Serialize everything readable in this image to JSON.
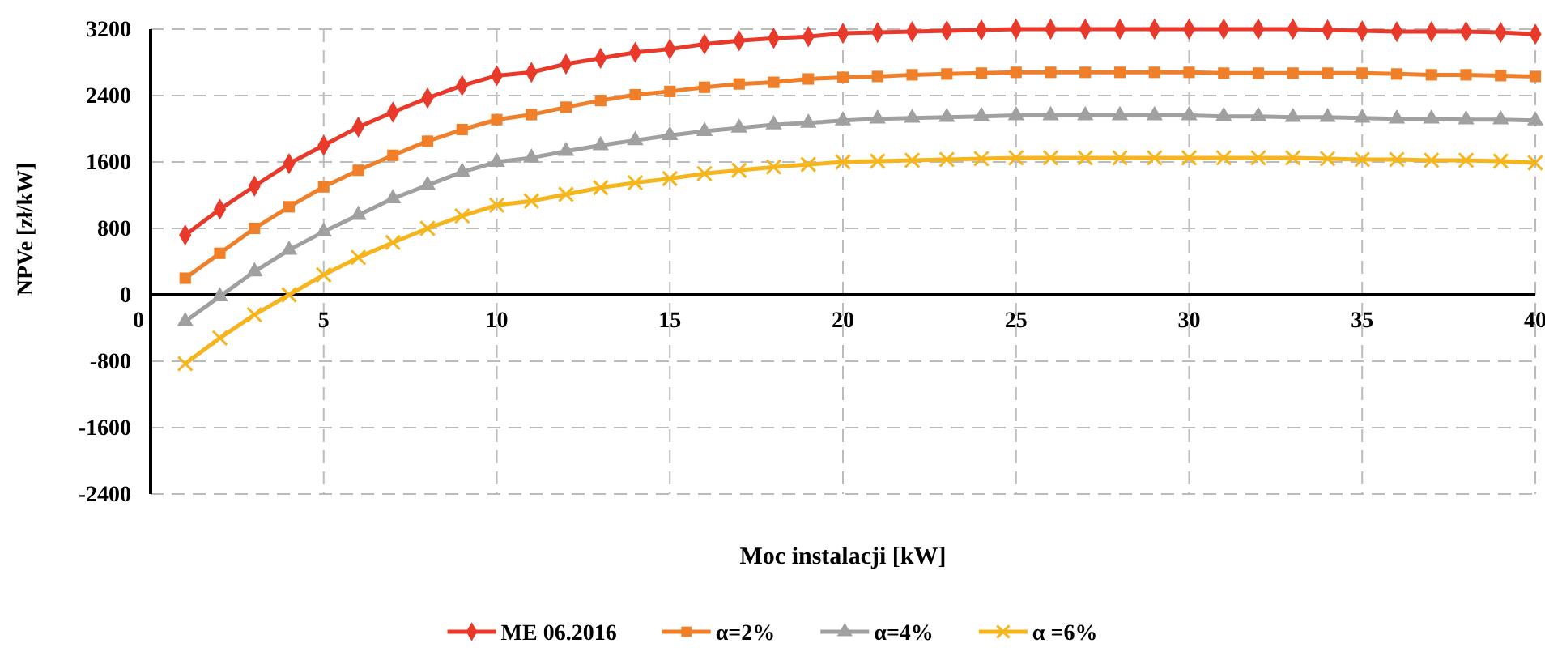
{
  "chart_data": {
    "type": "line",
    "xlabel": "Moc instalacji  [kW]",
    "ylabel": "NPVe [zł/kW]",
    "x": [
      1,
      2,
      3,
      4,
      5,
      6,
      7,
      8,
      9,
      10,
      11,
      12,
      13,
      14,
      15,
      16,
      17,
      18,
      19,
      20,
      21,
      22,
      23,
      24,
      25,
      26,
      27,
      28,
      29,
      30,
      31,
      32,
      33,
      34,
      35,
      36,
      37,
      38,
      39,
      40
    ],
    "xlim": [
      0,
      40
    ],
    "xticks": [
      0,
      5,
      10,
      15,
      20,
      25,
      30,
      35,
      40
    ],
    "ylim": [
      -2400,
      3200
    ],
    "yticks": [
      -2400,
      -1600,
      -800,
      0,
      800,
      1600,
      2400,
      3200
    ],
    "grid": true,
    "legend": "bottom",
    "line_style": "solid",
    "series": [
      {
        "name": "ME 06.2016",
        "color": "#e8392a",
        "marker": "diamond",
        "values": [
          720,
          1030,
          1310,
          1580,
          1800,
          2020,
          2200,
          2370,
          2520,
          2640,
          2680,
          2780,
          2850,
          2920,
          2960,
          3020,
          3060,
          3090,
          3110,
          3150,
          3160,
          3170,
          3180,
          3190,
          3200,
          3200,
          3200,
          3200,
          3200,
          3200,
          3200,
          3200,
          3200,
          3190,
          3180,
          3170,
          3170,
          3170,
          3160,
          3140
        ]
      },
      {
        "name": "α=2%",
        "color": "#f07f2a",
        "marker": "square",
        "values": [
          200,
          500,
          800,
          1060,
          1300,
          1500,
          1680,
          1850,
          1990,
          2110,
          2170,
          2260,
          2340,
          2410,
          2450,
          2500,
          2540,
          2560,
          2600,
          2620,
          2630,
          2650,
          2660,
          2670,
          2680,
          2680,
          2680,
          2680,
          2680,
          2680,
          2670,
          2670,
          2670,
          2670,
          2670,
          2660,
          2650,
          2650,
          2640,
          2630
        ]
      },
      {
        "name": "α=4%",
        "color": "#a0a0a0",
        "marker": "triangle",
        "values": [
          -320,
          -20,
          280,
          540,
          760,
          960,
          1160,
          1320,
          1480,
          1600,
          1650,
          1730,
          1800,
          1860,
          1920,
          1970,
          2010,
          2050,
          2070,
          2100,
          2120,
          2130,
          2140,
          2150,
          2160,
          2160,
          2160,
          2160,
          2160,
          2160,
          2150,
          2150,
          2140,
          2140,
          2130,
          2120,
          2120,
          2110,
          2110,
          2100
        ]
      },
      {
        "name": "α =6%",
        "color": "#f7b51d",
        "marker": "cross",
        "values": [
          -830,
          -520,
          -240,
          0,
          240,
          450,
          630,
          800,
          950,
          1080,
          1130,
          1210,
          1290,
          1350,
          1400,
          1460,
          1500,
          1540,
          1570,
          1600,
          1610,
          1620,
          1630,
          1640,
          1650,
          1650,
          1650,
          1650,
          1650,
          1650,
          1650,
          1650,
          1650,
          1640,
          1630,
          1630,
          1620,
          1620,
          1610,
          1590
        ]
      }
    ]
  }
}
